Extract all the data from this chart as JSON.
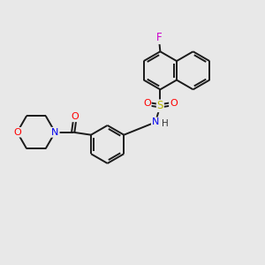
{
  "bg": "#e8e8e8",
  "bond_color": "#1a1a1a",
  "lw": 1.4,
  "doff": 0.055,
  "BL": 0.72,
  "atom_colors": {
    "F": "#cc00cc",
    "S": "#b8b800",
    "O": "#ff0000",
    "N": "#0000ee",
    "H": "#333333"
  },
  "figsize": [
    3.0,
    3.0
  ],
  "dpi": 100,
  "xlim": [
    0,
    10
  ],
  "ylim": [
    0,
    10
  ]
}
